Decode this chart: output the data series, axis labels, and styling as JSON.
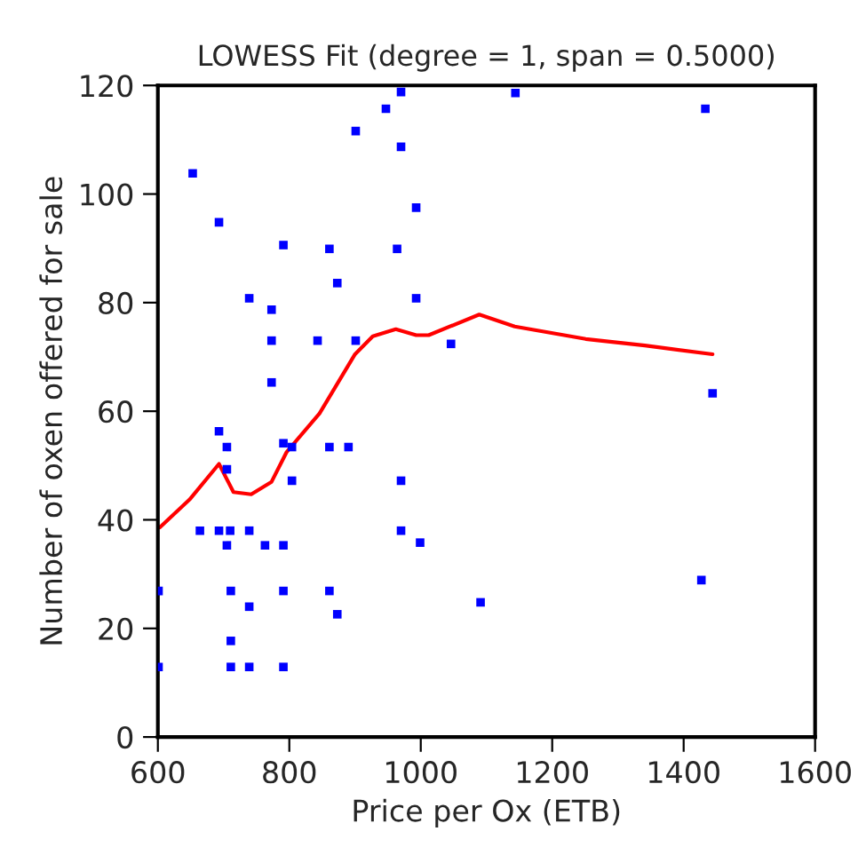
{
  "chart_data": {
    "type": "scatter",
    "title": "LOWESS Fit (degree = 1, span = 0.5000)",
    "xlabel": "Price per Ox (ETB)",
    "ylabel": "Number of oxen offered for sale",
    "xlim": [
      600,
      1600
    ],
    "xticks": [
      600,
      800,
      1000,
      1200,
      1400,
      1600
    ],
    "ylim": [
      0,
      120
    ],
    "yticks": [
      0,
      20,
      40,
      60,
      80,
      100,
      120
    ],
    "grid": false,
    "series": [
      {
        "color": "#0000ff",
        "marker": "square",
        "x": [
          970,
          947,
          901,
          970,
          653,
          993,
          693,
          791,
          861,
          964,
          873,
          739,
          993,
          773,
          773,
          843,
          901,
          1046,
          773,
          693,
          705,
          791,
          804,
          861,
          890,
          705,
          804,
          970,
          664,
          693,
          710,
          739,
          970,
          705,
          763,
          791,
          999,
          601,
          711,
          791,
          861,
          739,
          873,
          1091,
          711,
          601,
          711,
          739,
          791,
          1144,
          1433,
          1444,
          1427
        ],
        "values": [
          118.8,
          115.7,
          111.6,
          108.7,
          103.8,
          97.5,
          94.8,
          90.6,
          89.9,
          89.9,
          83.6,
          80.8,
          80.8,
          78.7,
          73.0,
          73.0,
          73.0,
          72.4,
          65.3,
          56.3,
          53.4,
          54.1,
          53.4,
          53.4,
          53.4,
          49.3,
          47.2,
          47.2,
          38.0,
          38.0,
          38.0,
          38.0,
          38.0,
          35.3,
          35.3,
          35.3,
          35.8,
          26.9,
          26.9,
          26.9,
          26.9,
          24.0,
          22.6,
          24.8,
          17.7,
          12.9,
          12.9,
          12.9,
          12.9,
          118.6,
          115.7,
          63.3,
          28.9
        ]
      },
      {
        "type": "line",
        "color": "#ff0000",
        "marker": "none",
        "line_style": "solid",
        "x": [
          603,
          648,
          693,
          715,
          742,
          773,
          796,
          846,
          900,
          927,
          962,
          993,
          1012,
          1089,
          1143,
          1251,
          1341,
          1444
        ],
        "values": [
          38.6,
          43.7,
          50.3,
          45.1,
          44.7,
          47.0,
          52.5,
          59.6,
          70.5,
          73.8,
          75.1,
          74.0,
          74.0,
          77.8,
          75.6,
          73.3,
          72.1,
          70.5
        ]
      }
    ]
  }
}
